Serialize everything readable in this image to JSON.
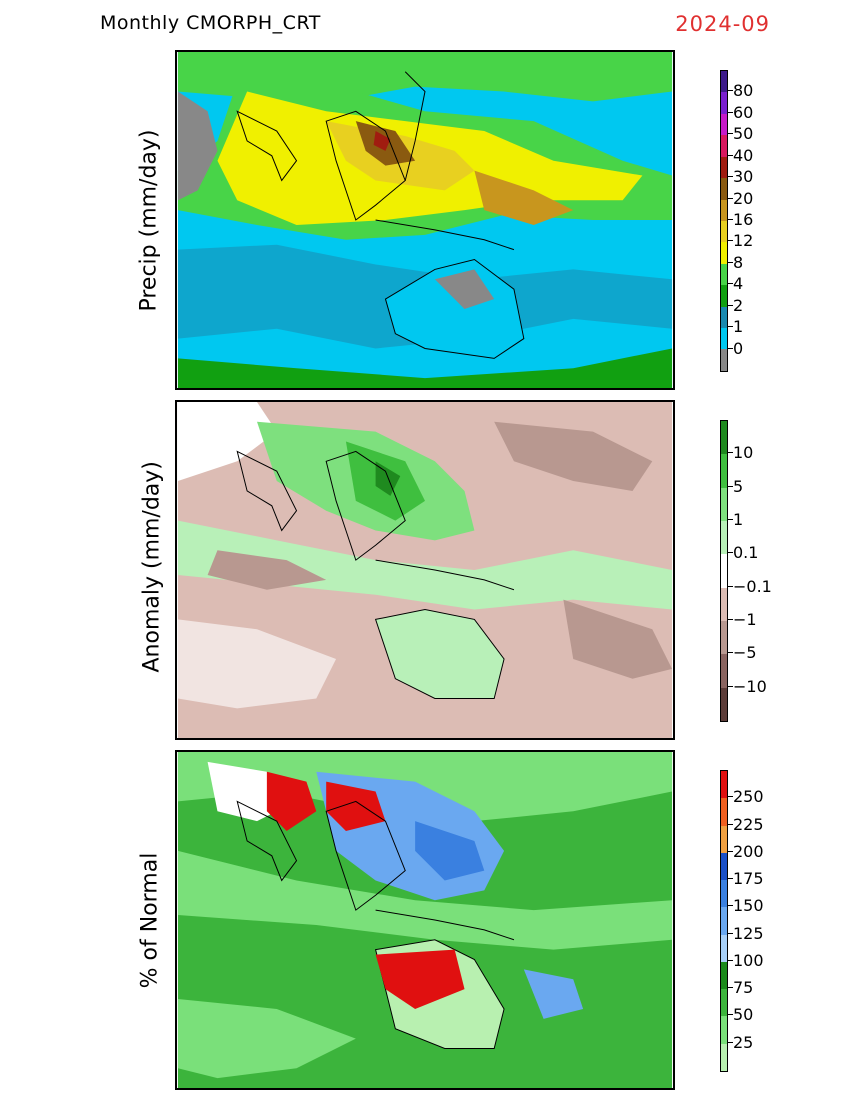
{
  "header": {
    "title": "Monthly  CMORPH_CRT",
    "date": "2024-09"
  },
  "panels": [
    {
      "ylabel": "Precip  (mm/day)",
      "colorbar": {
        "labels": [
          "80",
          "60",
          "50",
          "40",
          "30",
          "20",
          "16",
          "12",
          "8",
          "4",
          "2",
          "1",
          "0"
        ],
        "colors": [
          "#3d1a8a",
          "#7a1fcf",
          "#c61ac8",
          "#d8185f",
          "#a01c10",
          "#8a5a10",
          "#c8961e",
          "#e8d020",
          "#f0f000",
          "#48d448",
          "#11a011",
          "#1a8ab0",
          "#00c8f0",
          "#888888"
        ]
      }
    },
    {
      "ylabel": "Anomaly (mm/day)",
      "colorbar": {
        "labels": [
          "10",
          "5",
          "1",
          "0.1",
          "−0.1",
          "−1",
          "−5",
          "−10"
        ],
        "colors": [
          "#1f8a1f",
          "#3fbf3f",
          "#7ee07e",
          "#b8f0b8",
          "#ffffff",
          "#dcbcb4",
          "#b89890",
          "#8a6460",
          "#5c3c38"
        ]
      }
    },
    {
      "ylabel": "% of Normal",
      "colorbar": {
        "labels": [
          "250",
          "225",
          "200",
          "175",
          "150",
          "125",
          "100",
          "75",
          "50",
          "25"
        ],
        "colors": [
          "#e01010",
          "#f06020",
          "#f0a040",
          "#1a50c8",
          "#3a80e0",
          "#6aa8f0",
          "#a8d0f8",
          "#1a8a1a",
          "#3cb43c",
          "#7ae07a",
          "#b8f0b0"
        ]
      }
    }
  ]
}
